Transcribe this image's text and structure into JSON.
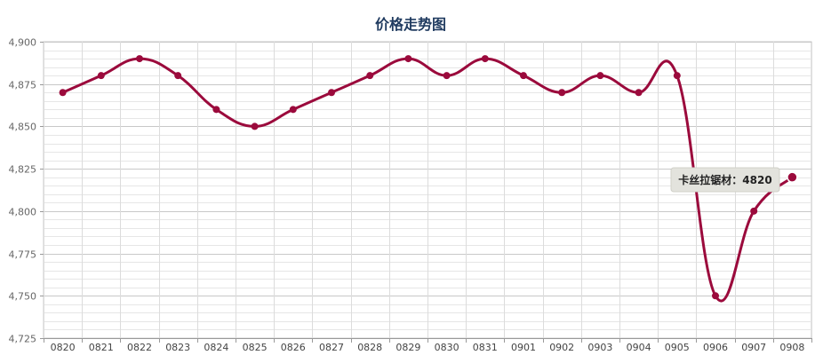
{
  "chart_data": {
    "type": "line",
    "title": "价格走势图",
    "xlabel": "",
    "ylabel": "",
    "categories": [
      "0820",
      "0821",
      "0822",
      "0823",
      "0824",
      "0825",
      "0826",
      "0827",
      "0828",
      "0829",
      "0830",
      "0831",
      "0901",
      "0902",
      "0903",
      "0904",
      "0905",
      "0906",
      "0907",
      "0908"
    ],
    "series": [
      {
        "name": "卡丝拉锯材",
        "values": [
          4870,
          4880,
          4890,
          4880,
          4860,
          4850,
          4860,
          4870,
          4880,
          4890,
          4880,
          4890,
          4880,
          4870,
          4880,
          4870,
          4880,
          4750,
          4800,
          4820
        ]
      }
    ],
    "ylim": [
      4725,
      4900
    ],
    "yticks": [
      4725,
      4750,
      4775,
      4800,
      4825,
      4850,
      4875,
      4900
    ],
    "ytick_labels": [
      "4,725",
      "4,750",
      "4,775",
      "4,800",
      "4,825",
      "4,850",
      "4,875",
      "4,900"
    ],
    "grid": true,
    "legend": "none",
    "line_color": "#9b0a3c",
    "tooltip": {
      "series_label": "卡丝拉锯材：",
      "value_label": "4820"
    }
  }
}
